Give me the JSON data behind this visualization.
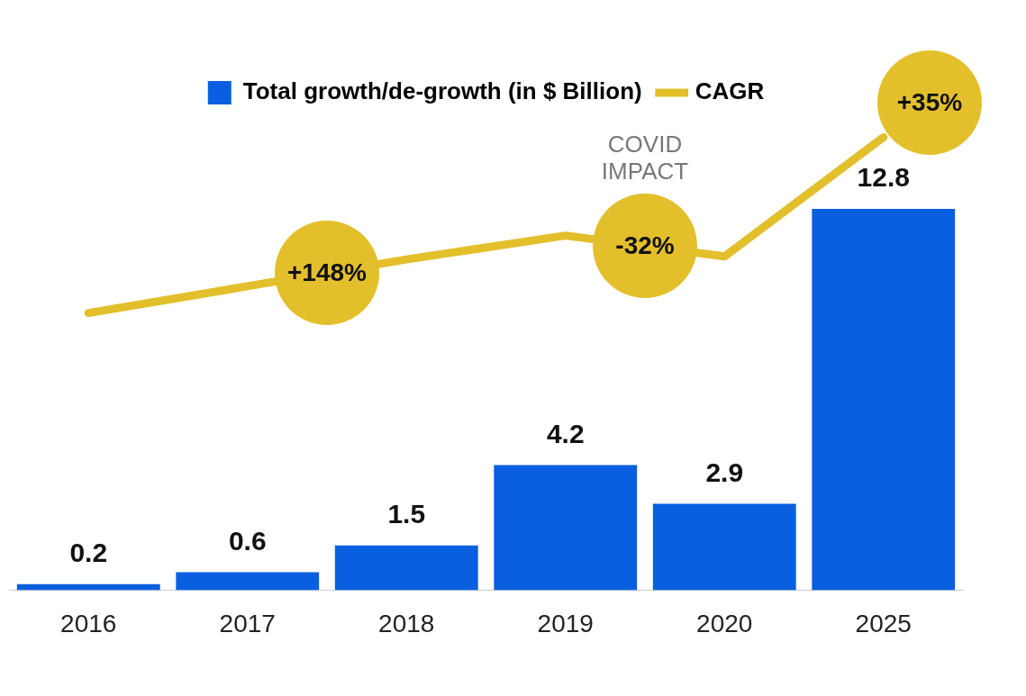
{
  "chart_data": {
    "type": "bar",
    "categories": [
      "2016",
      "2017",
      "2018",
      "2019",
      "2020",
      "2025"
    ],
    "series": [
      {
        "name": "Total growth/de-growth (in $ Billion)",
        "color": "#0a5fe0",
        "values": [
          0.2,
          0.6,
          1.5,
          4.2,
          2.9,
          12.8
        ],
        "value_labels": [
          "0.2",
          "0.6",
          "1.5",
          "4.2",
          "2.9",
          "12.8"
        ]
      },
      {
        "name": "CAGR",
        "type": "line",
        "color": "#e3bf2b",
        "values": [
          9.3,
          10.2,
          11.1,
          11.9,
          11.2,
          15.2
        ]
      }
    ],
    "tick_labels": "x",
    "grid": false,
    "legend": "top",
    "marker": "none",
    "annotations": [
      {
        "text": "+148%",
        "x": "2018",
        "y": 11.1
      },
      {
        "text": "-32%",
        "x": "2020",
        "y": 11.2
      },
      "COVID IMPACT",
      {
        "text": "+35%",
        "x": "2025",
        "y": 15.2
      }
    ]
  }
}
